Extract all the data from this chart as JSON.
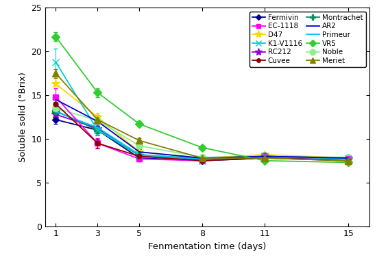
{
  "x": [
    1,
    3,
    5,
    8,
    11,
    15
  ],
  "series_order": [
    "Fermivin",
    "D47",
    "RC212",
    "Montrachet",
    "Primeur",
    "Noble",
    "EC-1118",
    "K1-V1116",
    "Cuvee",
    "AR2",
    "VR5",
    "Meriet"
  ],
  "legend_left": [
    "Fermivin",
    "D47",
    "RC212",
    "Montrachet",
    "Primeur",
    "Noble"
  ],
  "legend_right": [
    "EC-1118",
    "K1-V1116",
    "Cuvee",
    "AR2",
    "VR5",
    "Meriet"
  ],
  "series": {
    "Fermivin": {
      "y": [
        12.2,
        11.0,
        7.8,
        7.5,
        7.8,
        7.7
      ],
      "color": "#00008B",
      "marker": "D",
      "ms": 5,
      "mfc": "#00008B"
    },
    "D47": {
      "y": [
        16.3,
        12.5,
        8.5,
        7.8,
        8.2,
        7.8
      ],
      "color": "#FFD700",
      "marker": "*",
      "ms": 9,
      "mfc": "#FFD700"
    },
    "RC212": {
      "y": [
        12.8,
        11.2,
        8.1,
        7.6,
        7.9,
        7.7
      ],
      "color": "#9400D3",
      "marker": "*",
      "ms": 9,
      "mfc": "#9400D3"
    },
    "Montrachet": {
      "y": [
        13.2,
        11.0,
        8.1,
        7.8,
        8.0,
        7.8
      ],
      "color": "#009060",
      "marker": "P",
      "ms": 7,
      "mfc": "#009060"
    },
    "Primeur": {
      "y": [
        13.1,
        11.3,
        8.2,
        7.7,
        8.0,
        7.8
      ],
      "color": "#00BFFF",
      "marker": "None",
      "ms": 5,
      "mfc": "#00BFFF"
    },
    "Noble": {
      "y": [
        13.5,
        12.1,
        9.2,
        7.9,
        7.9,
        7.9
      ],
      "color": "#90EE90",
      "marker": "o",
      "ms": 7,
      "mfc": "#90EE90"
    },
    "EC-1118": {
      "y": [
        14.8,
        9.5,
        7.7,
        7.5,
        8.0,
        7.7
      ],
      "color": "#FF00FF",
      "marker": "s",
      "ms": 6,
      "mfc": "#FF00FF"
    },
    "K1-V1116": {
      "y": [
        18.8,
        11.0,
        8.2,
        7.5,
        8.0,
        7.7
      ],
      "color": "#00CED1",
      "marker": "x",
      "ms": 7,
      "mfc": "#00CED1"
    },
    "Cuvee": {
      "y": [
        14.0,
        9.5,
        8.0,
        7.5,
        7.8,
        7.5
      ],
      "color": "#8B0000",
      "marker": "o",
      "ms": 5,
      "mfc": "#8B0000"
    },
    "AR2": {
      "y": [
        14.5,
        12.0,
        8.5,
        7.8,
        8.0,
        7.8
      ],
      "color": "#0000CD",
      "marker": "None",
      "ms": 5,
      "mfc": "#0000CD"
    },
    "VR5": {
      "y": [
        21.7,
        15.3,
        11.7,
        9.0,
        7.5,
        7.3
      ],
      "color": "#32CD32",
      "marker": "D",
      "ms": 6,
      "mfc": "#32CD32"
    },
    "Meriet": {
      "y": [
        17.5,
        12.2,
        9.8,
        7.8,
        7.8,
        7.5
      ],
      "color": "#808000",
      "marker": "^",
      "ms": 7,
      "mfc": "#808000"
    }
  },
  "errors": {
    "Fermivin": [
      0.5,
      0.4,
      0.3,
      0.2,
      0.2,
      0.2
    ],
    "D47": [
      0.7,
      0.5,
      0.3,
      0.2,
      0.2,
      0.2
    ],
    "RC212": [
      0.5,
      0.5,
      0.3,
      0.2,
      0.2,
      0.2
    ],
    "Montrachet": [
      0.5,
      0.5,
      0.3,
      0.2,
      0.2,
      0.2
    ],
    "Primeur": [
      0.5,
      0.5,
      0.3,
      0.2,
      0.2,
      0.2
    ],
    "Noble": [
      0.5,
      0.5,
      0.3,
      0.2,
      0.2,
      0.2
    ],
    "EC-1118": [
      1.0,
      0.6,
      0.3,
      0.2,
      0.2,
      0.2
    ],
    "K1-V1116": [
      1.5,
      0.6,
      0.3,
      0.2,
      0.2,
      0.2
    ],
    "Cuvee": [
      0.5,
      0.5,
      0.3,
      0.2,
      0.2,
      0.2
    ],
    "AR2": [
      0.5,
      0.5,
      0.3,
      0.2,
      0.2,
      0.2
    ],
    "VR5": [
      0.5,
      0.5,
      0.3,
      0.2,
      0.2,
      0.2
    ],
    "Meriet": [
      0.5,
      0.5,
      0.3,
      0.2,
      0.2,
      0.2
    ]
  },
  "xlabel": "Fenmentation time (days)",
  "ylabel": "Soluble solid (°Brix)",
  "ylim": [
    0,
    25
  ],
  "xlim": [
    0.5,
    16
  ],
  "yticks": [
    0,
    5,
    10,
    15,
    20,
    25
  ],
  "xticks": [
    1,
    3,
    5,
    8,
    11,
    15
  ],
  "figsize": [
    5.5,
    3.8
  ],
  "dpi": 100
}
